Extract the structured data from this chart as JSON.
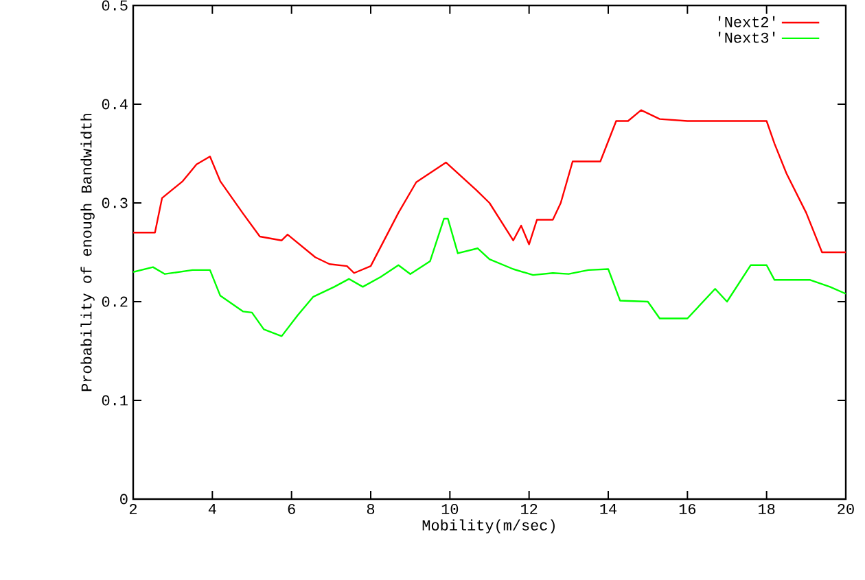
{
  "chart_data": {
    "type": "line",
    "xlabel": "Mobility(m/sec)",
    "ylabel": "Probability of enough Bandwidth",
    "xlim": [
      2,
      20
    ],
    "ylim": [
      0,
      0.5
    ],
    "xticks": [
      2,
      4,
      6,
      8,
      10,
      12,
      14,
      16,
      18,
      20
    ],
    "yticks": [
      0,
      0.1,
      0.2,
      0.3,
      0.4,
      0.5
    ],
    "grid": false,
    "legend": "top right",
    "marker": "none",
    "line_style": "solid",
    "series": [
      {
        "name": "'Next2'",
        "color": "#ff0000",
        "x": [
          2,
          2.55,
          2.73,
          3.25,
          3.6,
          3.94,
          4.2,
          4.78,
          5.2,
          5.75,
          5.9,
          6.6,
          6.96,
          7.4,
          7.58,
          8.0,
          8.7,
          9.15,
          9.9,
          10.67,
          11.0,
          11.6,
          11.8,
          12.0,
          12.2,
          12.6,
          12.8,
          13.1,
          13.8,
          14.2,
          14.5,
          14.83,
          15.3,
          16.0,
          18.0,
          18.2,
          18.5,
          19.0,
          19.4,
          20
        ],
        "values": [
          0.27,
          0.27,
          0.305,
          0.322,
          0.339,
          0.347,
          0.322,
          0.289,
          0.266,
          0.262,
          0.268,
          0.245,
          0.238,
          0.236,
          0.229,
          0.236,
          0.29,
          0.321,
          0.341,
          0.313,
          0.3,
          0.262,
          0.277,
          0.258,
          0.283,
          0.283,
          0.3,
          0.342,
          0.342,
          0.383,
          0.383,
          0.394,
          0.385,
          0.383,
          0.383,
          0.36,
          0.33,
          0.29,
          0.25,
          0.25
        ]
      },
      {
        "name": "'Next3'",
        "color": "#00ff00",
        "x": [
          2,
          2.5,
          2.8,
          3.5,
          3.94,
          4.2,
          4.78,
          5.0,
          5.3,
          5.75,
          6.15,
          6.55,
          7.08,
          7.45,
          7.8,
          8.25,
          8.7,
          9.0,
          9.5,
          9.85,
          9.95,
          10.2,
          10.7,
          11.0,
          11.6,
          12.1,
          12.6,
          13.0,
          13.5,
          14.0,
          14.3,
          15.0,
          15.3,
          16.0,
          16.7,
          17.0,
          17.6,
          18.0,
          18.2,
          19.1,
          19.6,
          20
        ],
        "values": [
          0.23,
          0.235,
          0.228,
          0.232,
          0.232,
          0.206,
          0.19,
          0.189,
          0.172,
          0.165,
          0.186,
          0.205,
          0.215,
          0.223,
          0.215,
          0.225,
          0.237,
          0.228,
          0.241,
          0.284,
          0.284,
          0.249,
          0.254,
          0.243,
          0.233,
          0.227,
          0.229,
          0.228,
          0.232,
          0.233,
          0.201,
          0.2,
          0.183,
          0.183,
          0.213,
          0.2,
          0.237,
          0.237,
          0.222,
          0.222,
          0.215,
          0.208
        ]
      }
    ]
  }
}
